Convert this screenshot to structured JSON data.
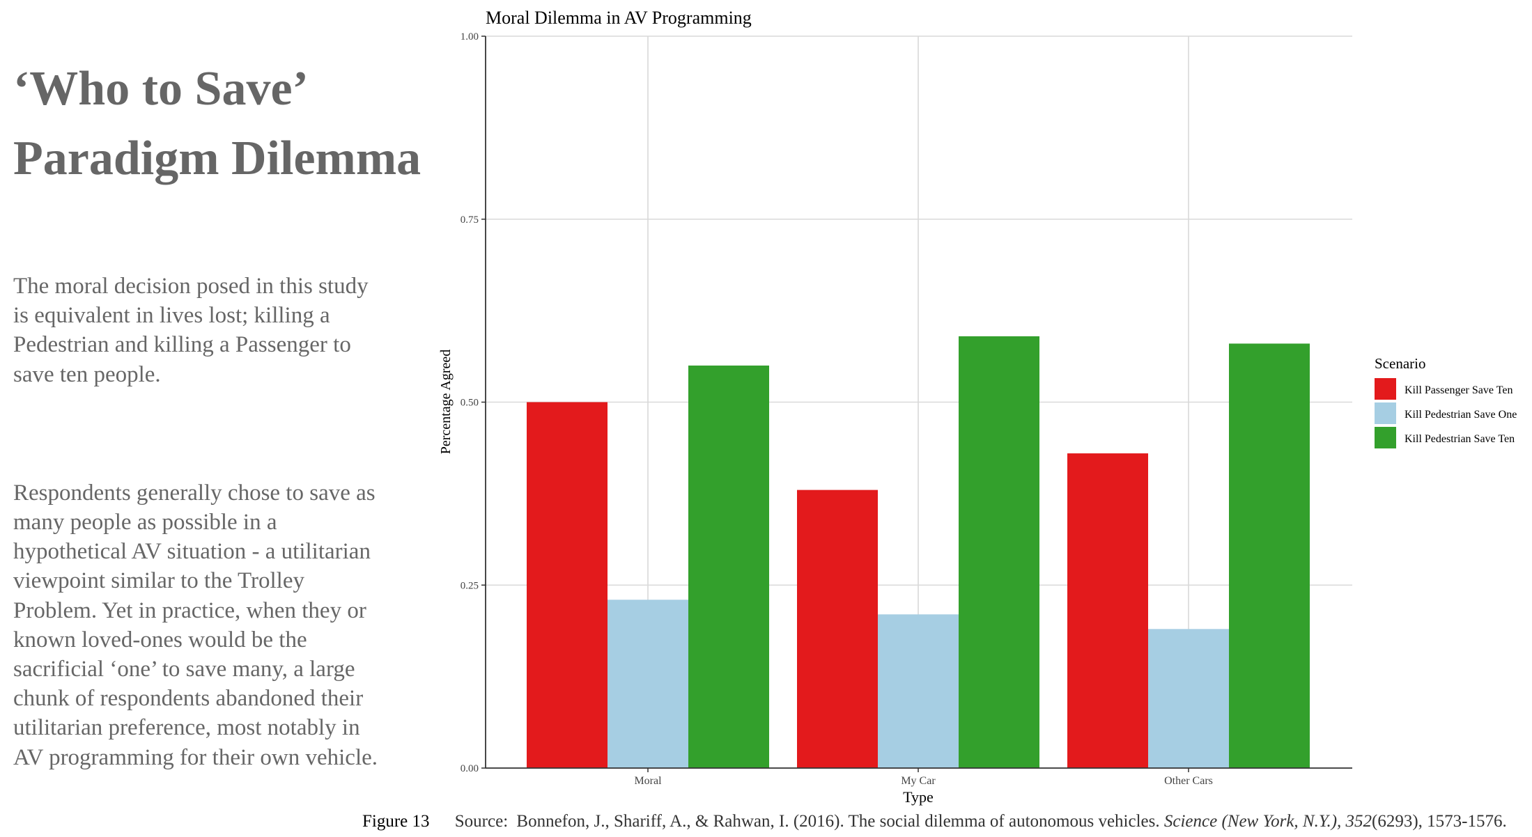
{
  "left_panel": {
    "heading": "‘Who to Save’\nParadigm Dilemma",
    "paragraphs": [
      "The moral decision posed in this study\nis equivalent in lives lost; killing a\nPedestrian and killing a Passenger to\nsave ten people.",
      "Respondents generally chose to save as\nmany people as possible in a\nhypothetical AV situation - a utilitarian\nviewpoint similar to the Trolley\nProblem. Yet in practice, when they or\nknown loved-ones would be the\nsacrificial ‘one’ to save many, a large\nchunk of respondents abandoned their\nutilitarian preference, most notably in\nAV programming for their own vehicle."
    ]
  },
  "chart_data": {
    "type": "bar",
    "title": "Moral Dilemma in AV Programming",
    "xlabel": "Type",
    "ylabel": "Percentage Agreed",
    "categories": [
      "Moral",
      "My Car",
      "Other Cars"
    ],
    "series": [
      {
        "name": "Kill Passenger Save Ten",
        "values": [
          0.5,
          0.38,
          0.43
        ],
        "color": "#e31a1c"
      },
      {
        "name": "Kill Pedestrian Save One",
        "values": [
          0.23,
          0.21,
          0.19
        ],
        "color": "#a6cee3"
      },
      {
        "name": "Kill Pedestrian Save Ten",
        "values": [
          0.55,
          0.59,
          0.58
        ],
        "color": "#33a02c"
      }
    ],
    "ylim": [
      0,
      1
    ],
    "yticks": [
      0,
      0.25,
      0.5,
      0.75,
      1
    ],
    "ytick_labels": [
      "0.00",
      "0.25",
      "0.50",
      "0.75",
      "1.00"
    ],
    "grid": true,
    "legend_title": "Scenario",
    "legend_position": "right"
  },
  "caption": {
    "label": "Figure 13",
    "source_label": "Source:",
    "citation_plain": "Bonnefon, J., Shariff, A., & Rahwan, I. (2016). The social dilemma of autonomous vehicles. ",
    "journal": "Science (New York, N.Y.),",
    "volume": "352",
    "pages": "(6293), 1573-1576."
  }
}
